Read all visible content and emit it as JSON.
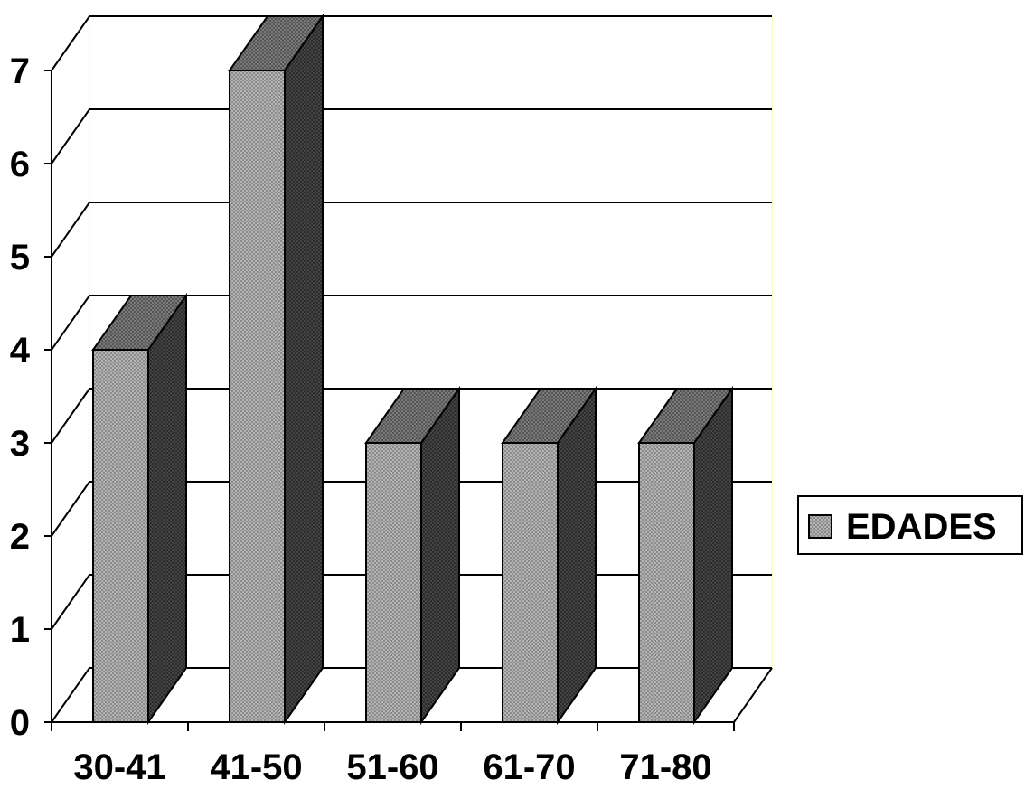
{
  "chart_data": {
    "type": "bar",
    "title": "",
    "xlabel": "",
    "ylabel": "",
    "categories": [
      "30-41",
      "41-50",
      "51-60",
      "61-70",
      "71-80"
    ],
    "series": [
      {
        "name": "EDADES",
        "values": [
          4,
          7,
          3,
          3,
          3
        ]
      }
    ],
    "ylim": [
      0,
      7
    ],
    "yticks": [
      "0",
      "1",
      "2",
      "3",
      "4",
      "5",
      "6",
      "7"
    ],
    "grid": true,
    "three_d": true,
    "legend": "right",
    "colors": {
      "bar_front": "#a6a6a6",
      "bar_top": "#6e6e6e",
      "bar_side": "#3c3c3c",
      "gridline": "#000000",
      "wall_edge": "#ffffc0"
    }
  }
}
